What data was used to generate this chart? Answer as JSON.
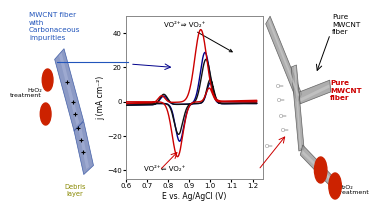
{
  "xlabel": "E vs. Ag/AgCl (V)",
  "ylabel": "j (mA cm⁻²)",
  "xlim": [
    0.6,
    1.25
  ],
  "ylim": [
    -45,
    50
  ],
  "xticks": [
    0.6,
    0.7,
    0.8,
    0.9,
    1.0,
    1.1,
    1.2
  ],
  "yticks": [
    -40,
    -20,
    0,
    20,
    40
  ],
  "label_top": "VO²⁺⇒ VO₂⁺",
  "label_bottom": "VO²⁺⇐ VO₂⁺",
  "text_left_title": "MWCNT fiber\nwith\nCarbonaceous\nimpurities",
  "text_left_h2o2": "H₂O₂\ntreatment",
  "text_left_debris": "Debris\nlayer",
  "text_right_top_label": "Pure\nMWCNT\nfiber",
  "text_right_mid_label": "Pure\nMWCNT\nfiber",
  "text_right_h2o2": "H₂O₂\ntreatment",
  "plot_colors": [
    "#cc0000",
    "#00008b",
    "#111111"
  ],
  "fiber_blue": "#7888bb",
  "fiber_blue_light": "#aab4d8",
  "fiber_gray": "#a0a0a0",
  "fiber_gray_light": "#c8c8c8"
}
